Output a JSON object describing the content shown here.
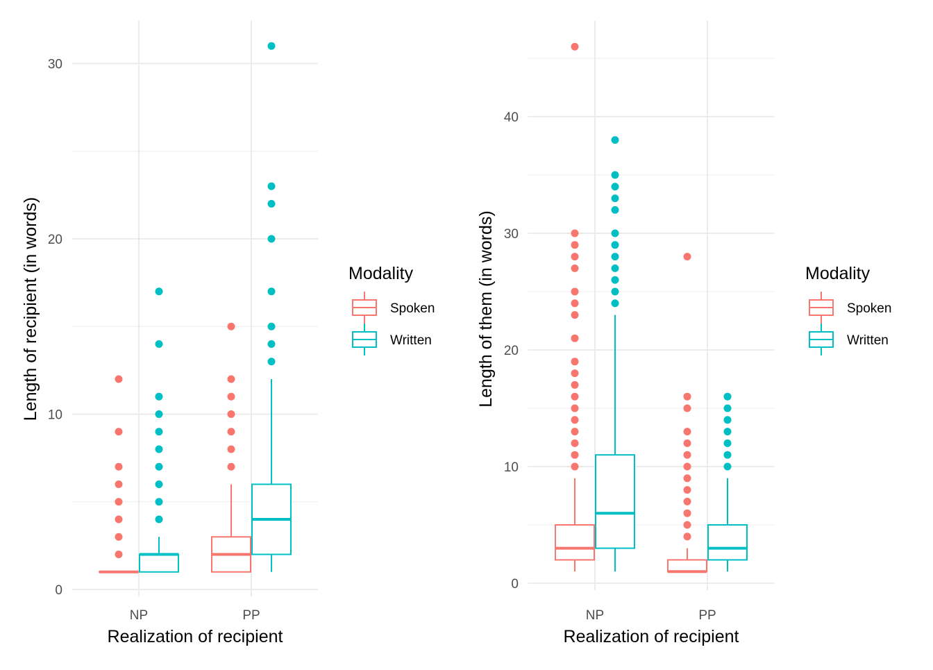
{
  "colors": {
    "Spoken": "#F8766D",
    "Written": "#00BFC4"
  },
  "chart_data": [
    {
      "type": "boxplot",
      "xlabel": "Realization of recipient",
      "ylabel": "Length of recipient (in words)",
      "categories": [
        "NP",
        "PP"
      ],
      "y_ticks": [
        0,
        10,
        20,
        30
      ],
      "ylim": [
        0,
        31
      ],
      "grid": true,
      "legend": {
        "title": "Modality",
        "entries": [
          "Spoken",
          "Written"
        ],
        "position": "right"
      },
      "series": [
        {
          "name": "Spoken",
          "boxes": [
            {
              "category": "NP",
              "min": 1,
              "q1": 1,
              "median": 1,
              "q3": 1,
              "max": 1,
              "outliers": [
                2,
                3,
                4,
                5,
                6,
                7,
                9,
                12
              ]
            },
            {
              "category": "PP",
              "min": 1,
              "q1": 1,
              "median": 2,
              "q3": 3,
              "max": 6,
              "outliers": [
                7,
                8,
                9,
                10,
                11,
                12,
                15
              ]
            }
          ]
        },
        {
          "name": "Written",
          "boxes": [
            {
              "category": "NP",
              "min": 1,
              "q1": 1,
              "median": 2,
              "q3": 2,
              "max": 3,
              "outliers": [
                4,
                5,
                6,
                7,
                8,
                9,
                10,
                11,
                14,
                17
              ]
            },
            {
              "category": "PP",
              "min": 1,
              "q1": 2,
              "median": 4,
              "q3": 6,
              "max": 12,
              "outliers": [
                13,
                14,
                15,
                17,
                20,
                22,
                23,
                31
              ]
            }
          ]
        }
      ]
    },
    {
      "type": "boxplot",
      "xlabel": "Realization of recipient",
      "ylabel": "Length of them (in words)",
      "categories": [
        "NP",
        "PP"
      ],
      "y_ticks": [
        0,
        10,
        20,
        30,
        40
      ],
      "ylim": [
        0,
        46
      ],
      "grid": true,
      "legend": {
        "title": "Modality",
        "entries": [
          "Spoken",
          "Written"
        ],
        "position": "right"
      },
      "series": [
        {
          "name": "Spoken",
          "boxes": [
            {
              "category": "NP",
              "min": 1,
              "q1": 2,
              "median": 3,
              "q3": 5,
              "max": 9,
              "outliers": [
                10,
                11,
                12,
                13,
                14,
                15,
                16,
                17,
                18,
                19,
                21,
                23,
                24,
                25,
                27,
                28,
                29,
                30,
                46
              ]
            },
            {
              "category": "PP",
              "min": 1,
              "q1": 1,
              "median": 1,
              "q3": 2,
              "max": 3,
              "outliers": [
                4,
                5,
                6,
                7,
                8,
                9,
                10,
                11,
                12,
                13,
                15,
                16,
                28
              ]
            }
          ]
        },
        {
          "name": "Written",
          "boxes": [
            {
              "category": "NP",
              "min": 1,
              "q1": 3,
              "median": 6,
              "q3": 11,
              "max": 23,
              "outliers": [
                24,
                25,
                26,
                27,
                28,
                29,
                30,
                32,
                33,
                34,
                35,
                38
              ]
            },
            {
              "category": "PP",
              "min": 1,
              "q1": 2,
              "median": 3,
              "q3": 5,
              "max": 9,
              "outliers": [
                10,
                11,
                12,
                13,
                14,
                15,
                16
              ]
            }
          ]
        }
      ]
    }
  ]
}
